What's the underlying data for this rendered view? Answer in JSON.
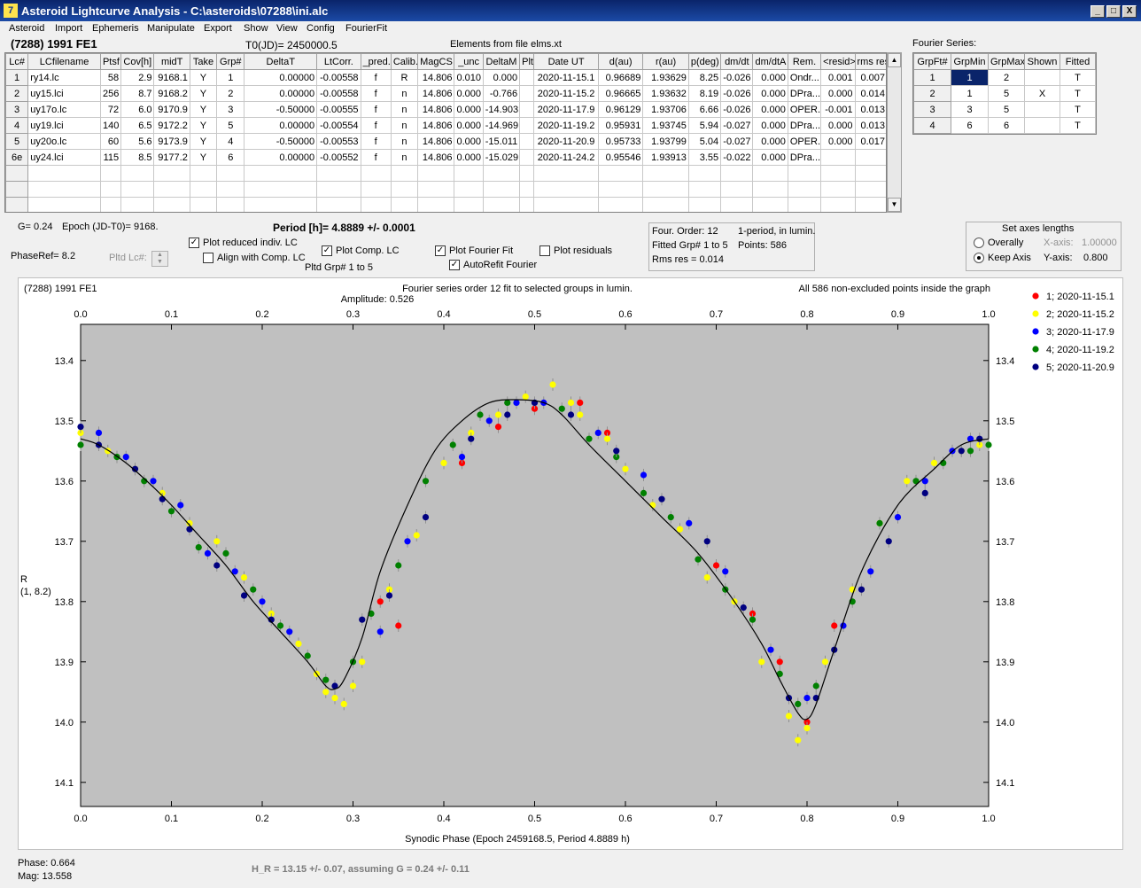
{
  "window": {
    "title": "Asteroid Lightcurve Analysis - C:\\asteroids\\07288\\ini.alc",
    "icon": "app-icon",
    "min_label": "_",
    "max_label": "□",
    "close_label": "X"
  },
  "menu": [
    "Asteroid",
    "Import",
    "Ephemeris",
    "Manipulate",
    "Export",
    "Show",
    "View",
    "Config",
    "FourierFit"
  ],
  "header": {
    "asteroid": "(7288) 1991 FE1",
    "t0": "T0(JD)= 2450000.5",
    "elements": "Elements from file elms.xt",
    "fourier_series_label": "Fourier Series:"
  },
  "lc_table": {
    "columns": [
      "Lc#",
      "LCfilename",
      "Ptsf",
      "Cov[h]",
      "midT",
      "Take",
      "Grp#",
      "DeltaT",
      "LtCorr.",
      "_pred.",
      "Calib.",
      "MagCS",
      "_unc",
      "DeltaM",
      "Plt",
      "Date UT",
      "d(au)",
      "r(au)",
      "p(deg)",
      "dm/dt",
      "dm/dtA",
      "Rem.",
      "<resid>",
      "rms res"
    ],
    "rows": [
      [
        "1",
        "ry14.lc",
        "58",
        "2.9",
        "9168.1",
        "Y",
        "1",
        "0.00000",
        "-0.00558",
        "f",
        "R",
        "14.806",
        "0.010",
        "0.000",
        "",
        "2020-11-15.1",
        "0.96689",
        "1.93629",
        "8.25",
        "-0.026",
        "0.000",
        "Ondr...",
        "0.001",
        "0.007"
      ],
      [
        "2",
        "uy15.lci",
        "256",
        "8.7",
        "9168.2",
        "Y",
        "2",
        "0.00000",
        "-0.00558",
        "f",
        "n",
        "14.806",
        "0.000",
        "-0.766",
        "",
        "2020-11-15.2",
        "0.96665",
        "1.93632",
        "8.19",
        "-0.026",
        "0.000",
        "DPra...",
        "0.000",
        "0.014"
      ],
      [
        "3",
        "uy17o.lc",
        "72",
        "6.0",
        "9170.9",
        "Y",
        "3",
        "-0.50000",
        "-0.00555",
        "f",
        "n",
        "14.806",
        "0.000",
        "-14.903",
        "",
        "2020-11-17.9",
        "0.96129",
        "1.93706",
        "6.66",
        "-0.026",
        "0.000",
        "OPER...",
        "-0.001",
        "0.013"
      ],
      [
        "4",
        "uy19.lci",
        "140",
        "6.5",
        "9172.2",
        "Y",
        "5",
        "0.00000",
        "-0.00554",
        "f",
        "n",
        "14.806",
        "0.000",
        "-14.969",
        "",
        "2020-11-19.2",
        "0.95931",
        "1.93745",
        "5.94",
        "-0.027",
        "0.000",
        "DPra...",
        "0.000",
        "0.013"
      ],
      [
        "5",
        "uy20o.lc",
        "60",
        "5.6",
        "9173.9",
        "Y",
        "4",
        "-0.50000",
        "-0.00553",
        "f",
        "n",
        "14.806",
        "0.000",
        "-15.011",
        "",
        "2020-11-20.9",
        "0.95733",
        "1.93799",
        "5.04",
        "-0.027",
        "0.000",
        "OPER...",
        "0.000",
        "0.017"
      ],
      [
        "6e",
        "uy24.lci",
        "115",
        "8.5",
        "9177.2",
        "Y",
        "6",
        "0.00000",
        "-0.00552",
        "f",
        "n",
        "14.806",
        "0.000",
        "-15.029",
        "",
        "2020-11-24.2",
        "0.95546",
        "1.93913",
        "3.55",
        "-0.022",
        "0.000",
        "DPra...",
        "",
        ""
      ]
    ]
  },
  "fourier_table": {
    "columns": [
      "GrpFt#",
      "GrpMin",
      "GrpMax",
      "Shown",
      "Fitted"
    ],
    "rows": [
      [
        "1",
        "1",
        "2",
        "",
        "T"
      ],
      [
        "2",
        "1",
        "5",
        "X",
        "T"
      ],
      [
        "3",
        "3",
        "5",
        "",
        "T"
      ],
      [
        "4",
        "6",
        "6",
        "",
        "T"
      ]
    ]
  },
  "controls": {
    "g_value": "G= 0.24",
    "epoch": "Epoch (JD-T0)= 9168.",
    "period": "Period [h]= 4.8889 +/- 0.0001",
    "phaseref": "PhaseRef= 8.2",
    "pltd_lc": "Pltd Lc#:",
    "plot_reduced": "Plot reduced indiv. LC",
    "align_comp": "Align with Comp. LC",
    "plot_comp": "Plot Comp. LC",
    "pltd_grp": "Pltd Grp#  1   to   5",
    "plot_fourier": "Plot Fourier Fit",
    "autorefit": "AutoRefit Fourier",
    "plot_residuals": "Plot residuals",
    "four_order": "Four. Order: 12",
    "one_period": "1-period, in lumin.",
    "fitted_grp": "Fitted Grp# 1 to 5",
    "points": "Points: 586",
    "rms_res": "Rms res    = 0.014",
    "set_axes": "Set axes lengths",
    "overally": "Overally",
    "keep_axis": "Keep Axis",
    "x_axis_label": "X-axis:",
    "x_axis_value": "1.00000",
    "y_axis_label": "Y-axis:",
    "y_axis_value": "0.800"
  },
  "checks": {
    "plot_reduced": true,
    "align_comp": false,
    "plot_comp": true,
    "plot_fourier": true,
    "autorefit": true,
    "plot_residuals": false
  },
  "chart_data": {
    "type": "scatter",
    "title": "(7288) 1991 FE1",
    "subtitle": "Fourier series order 12 fit to selected groups in lumin.",
    "amplitude": "Amplitude: 0.526",
    "note": "All 586 non-excluded points inside the graph",
    "xlabel": "Synodic Phase (Epoch 2459168.5, Period 4.8889 h)",
    "ylabel": "R",
    "ylabel2": "(1, 8.2)",
    "xlim": [
      0,
      1
    ],
    "ylim": [
      13.34,
      14.14
    ],
    "y_inverted": true,
    "xticks": [
      "0.0",
      "0.1",
      "0.2",
      "0.3",
      "0.4",
      "0.5",
      "0.6",
      "0.7",
      "0.8",
      "0.9",
      "1.0"
    ],
    "yticks": [
      "13.4",
      "13.5",
      "13.6",
      "13.7",
      "13.8",
      "13.9",
      "14.0",
      "14.1"
    ],
    "fourier_fit": {
      "x": [
        0,
        0.02,
        0.05,
        0.08,
        0.1,
        0.13,
        0.16,
        0.19,
        0.22,
        0.25,
        0.27,
        0.28,
        0.29,
        0.31,
        0.33,
        0.36,
        0.39,
        0.42,
        0.45,
        0.48,
        0.51,
        0.53,
        0.56,
        0.6,
        0.64,
        0.68,
        0.72,
        0.75,
        0.77,
        0.79,
        0.8,
        0.81,
        0.83,
        0.86,
        0.9,
        0.94,
        0.97,
        1.0
      ],
      "y": [
        13.53,
        13.54,
        13.57,
        13.61,
        13.64,
        13.69,
        13.74,
        13.8,
        13.85,
        13.9,
        13.94,
        13.945,
        13.93,
        13.86,
        13.75,
        13.64,
        13.55,
        13.5,
        13.47,
        13.465,
        13.47,
        13.49,
        13.54,
        13.6,
        13.66,
        13.72,
        13.8,
        13.87,
        13.93,
        13.985,
        13.995,
        13.97,
        13.88,
        13.75,
        13.64,
        13.58,
        13.54,
        13.53
      ]
    },
    "series": [
      {
        "name": "1; 2020-11-15.1",
        "color": "#ff0000",
        "x": [
          0.35,
          0.42,
          0.5,
          0.55,
          0.58,
          0.7,
          0.74,
          0.77,
          0.8,
          0.83,
          0.33,
          0.46
        ],
        "y": [
          13.84,
          13.57,
          13.48,
          13.47,
          13.52,
          13.74,
          13.82,
          13.9,
          14.0,
          13.84,
          13.8,
          13.51
        ]
      },
      {
        "name": "2; 2020-11-15.2",
        "color": "#ffff00",
        "x": [
          0.0,
          0.03,
          0.06,
          0.09,
          0.12,
          0.15,
          0.18,
          0.21,
          0.24,
          0.26,
          0.28,
          0.29,
          0.3,
          0.31,
          0.34,
          0.37,
          0.4,
          0.43,
          0.46,
          0.49,
          0.52,
          0.55,
          0.58,
          0.6,
          0.63,
          0.66,
          0.69,
          0.72,
          0.75,
          0.78,
          0.79,
          0.8,
          0.82,
          0.85,
          0.88,
          0.91,
          0.94,
          0.97,
          0.99,
          0.27,
          0.54
        ],
        "y": [
          13.52,
          13.55,
          13.58,
          13.62,
          13.67,
          13.7,
          13.76,
          13.82,
          13.87,
          13.92,
          13.96,
          13.97,
          13.94,
          13.9,
          13.78,
          13.69,
          13.57,
          13.52,
          13.49,
          13.46,
          13.44,
          13.49,
          13.53,
          13.58,
          13.64,
          13.68,
          13.76,
          13.8,
          13.9,
          13.99,
          14.03,
          14.01,
          13.9,
          13.78,
          13.67,
          13.6,
          13.57,
          13.55,
          13.54,
          13.95,
          13.47
        ]
      },
      {
        "name": "3; 2020-11-17.9",
        "color": "#0000ff",
        "x": [
          0.02,
          0.05,
          0.08,
          0.11,
          0.14,
          0.17,
          0.2,
          0.23,
          0.33,
          0.36,
          0.42,
          0.45,
          0.48,
          0.51,
          0.57,
          0.62,
          0.67,
          0.71,
          0.76,
          0.8,
          0.84,
          0.87,
          0.9,
          0.93,
          0.96,
          0.98
        ],
        "y": [
          13.52,
          13.56,
          13.6,
          13.64,
          13.72,
          13.75,
          13.8,
          13.85,
          13.85,
          13.7,
          13.56,
          13.5,
          13.47,
          13.47,
          13.52,
          13.59,
          13.67,
          13.75,
          13.88,
          13.96,
          13.84,
          13.75,
          13.66,
          13.6,
          13.55,
          13.53
        ]
      },
      {
        "name": "4; 2020-11-19.2",
        "color": "#008000",
        "x": [
          0.0,
          0.04,
          0.07,
          0.1,
          0.13,
          0.16,
          0.19,
          0.22,
          0.25,
          0.27,
          0.3,
          0.32,
          0.35,
          0.38,
          0.41,
          0.44,
          0.47,
          0.53,
          0.56,
          0.59,
          0.62,
          0.65,
          0.68,
          0.71,
          0.74,
          0.77,
          0.79,
          0.81,
          0.85,
          0.88,
          0.92,
          0.95,
          0.98,
          1.0
        ],
        "y": [
          13.54,
          13.56,
          13.6,
          13.65,
          13.71,
          13.72,
          13.78,
          13.84,
          13.89,
          13.93,
          13.9,
          13.82,
          13.74,
          13.6,
          13.54,
          13.49,
          13.47,
          13.48,
          13.53,
          13.56,
          13.62,
          13.66,
          13.73,
          13.78,
          13.83,
          13.92,
          13.97,
          13.94,
          13.8,
          13.67,
          13.6,
          13.57,
          13.55,
          13.54
        ]
      },
      {
        "name": "5; 2020-11-20.9",
        "color": "#000080",
        "x": [
          0.0,
          0.02,
          0.06,
          0.09,
          0.12,
          0.15,
          0.18,
          0.21,
          0.28,
          0.31,
          0.34,
          0.38,
          0.43,
          0.47,
          0.5,
          0.54,
          0.59,
          0.64,
          0.69,
          0.73,
          0.78,
          0.81,
          0.83,
          0.86,
          0.89,
          0.93,
          0.97,
          0.99
        ],
        "y": [
          13.51,
          13.54,
          13.58,
          13.63,
          13.68,
          13.74,
          13.79,
          13.83,
          13.94,
          13.83,
          13.79,
          13.66,
          13.53,
          13.49,
          13.47,
          13.49,
          13.55,
          13.63,
          13.7,
          13.81,
          13.96,
          13.96,
          13.88,
          13.78,
          13.7,
          13.62,
          13.55,
          13.53
        ]
      }
    ]
  },
  "status": {
    "phase": "Phase:  0.664",
    "mag": "Mag:    13.558",
    "hr": "H_R = 13.15 +/- 0.07, assuming G = 0.24 +/- 0.11"
  }
}
